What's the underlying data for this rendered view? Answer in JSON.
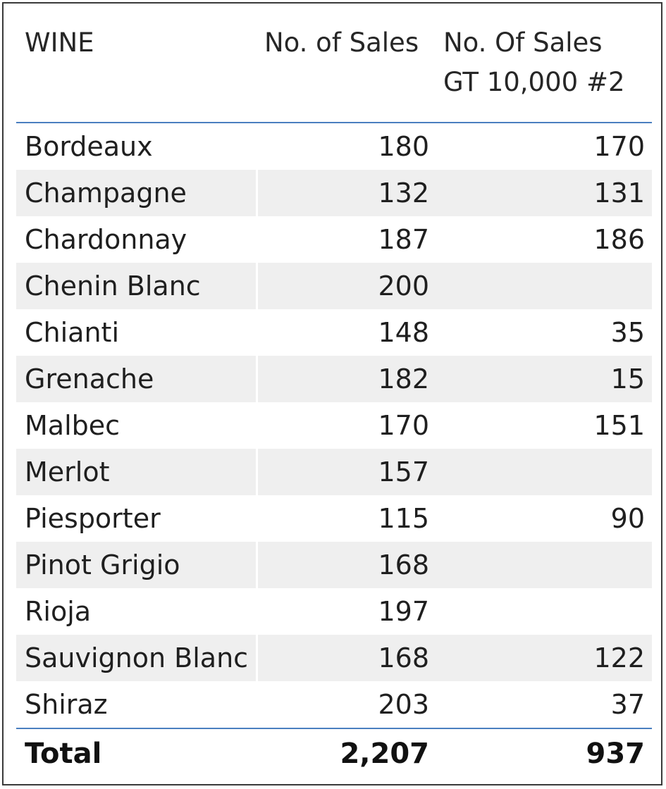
{
  "table": {
    "headers": {
      "wine": "WINE",
      "sales": "No. of Sales",
      "gt_line1": "No. Of Sales",
      "gt_line2": "GT 10,000 #2"
    },
    "rows": [
      {
        "wine": "Bordeaux",
        "sales": "180",
        "gt": "170"
      },
      {
        "wine": "Champagne",
        "sales": "132",
        "gt": "131"
      },
      {
        "wine": "Chardonnay",
        "sales": "187",
        "gt": "186"
      },
      {
        "wine": "Chenin Blanc",
        "sales": "200",
        "gt": ""
      },
      {
        "wine": "Chianti",
        "sales": "148",
        "gt": "35"
      },
      {
        "wine": "Grenache",
        "sales": "182",
        "gt": "15"
      },
      {
        "wine": "Malbec",
        "sales": "170",
        "gt": "151"
      },
      {
        "wine": "Merlot",
        "sales": "157",
        "gt": ""
      },
      {
        "wine": "Piesporter",
        "sales": "115",
        "gt": "90"
      },
      {
        "wine": "Pinot Grigio",
        "sales": "168",
        "gt": ""
      },
      {
        "wine": "Rioja",
        "sales": "197",
        "gt": ""
      },
      {
        "wine": "Sauvignon Blanc",
        "sales": "168",
        "gt": "122"
      },
      {
        "wine": "Shiraz",
        "sales": "203",
        "gt": "37"
      }
    ],
    "total": {
      "label": "Total",
      "sales": "2,207",
      "gt": "937"
    }
  },
  "colors": {
    "divider": "#4a7fc0",
    "alt_row": "#efefef",
    "border": "#3a3a3a"
  }
}
